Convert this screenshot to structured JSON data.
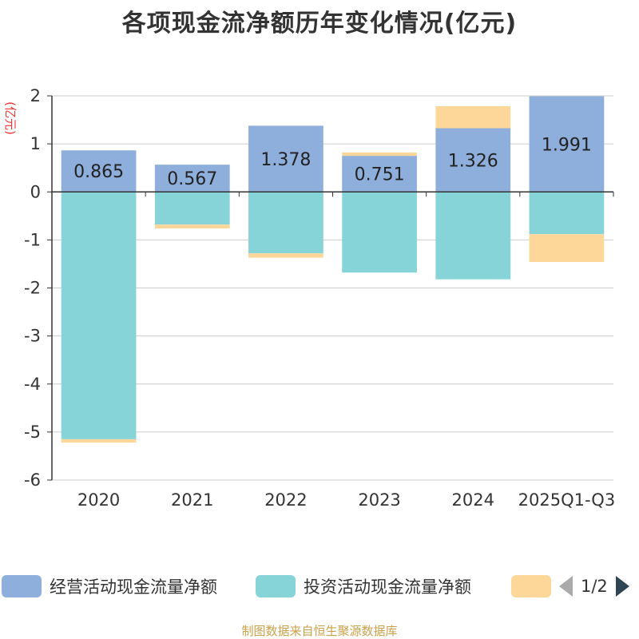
{
  "title": "各项现金流净额历年变化情况(亿元)",
  "y_unit": "(亿元)",
  "source": "制图数据来自恒生聚源数据库",
  "pager": "1/2",
  "colors": {
    "operating": "#8eaedb",
    "investing": "#87d4d8",
    "financing": "#fdd699",
    "axis": "#333333",
    "grid": "#cccccc"
  },
  "chart_data": {
    "type": "bar",
    "stacked": true,
    "categories": [
      "2020",
      "2021",
      "2022",
      "2023",
      "2024",
      "2025Q1-Q3"
    ],
    "ylim": [
      -6,
      2
    ],
    "yticks": [
      2,
      1,
      0,
      -1,
      -2,
      -3,
      -4,
      -5,
      -6
    ],
    "grid": true,
    "legend_position": "bottom",
    "series": [
      {
        "name": "经营活动现金流量净额",
        "color_key": "operating",
        "values": [
          0.865,
          0.567,
          1.378,
          0.751,
          1.326,
          1.991
        ],
        "labels": [
          "0.865",
          "0.567",
          "1.378",
          "0.751",
          "1.326",
          "1.991"
        ]
      },
      {
        "name": "投资活动现金流量净额",
        "color_key": "investing",
        "values": [
          -5.15,
          -0.68,
          -1.28,
          -1.68,
          -1.82,
          -0.88
        ]
      },
      {
        "name": "",
        "color_key": "financing",
        "values": [
          -0.07,
          -0.08,
          -0.09,
          0.07,
          0.46,
          -0.58
        ]
      }
    ]
  }
}
